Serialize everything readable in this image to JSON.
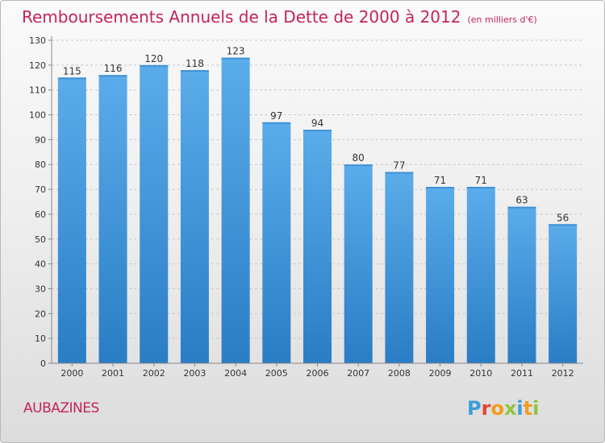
{
  "chart_data": {
    "type": "bar",
    "title": "Remboursements Annuels de la Dette de 2000 à 2012",
    "unit": "(en milliers d'€)",
    "categories": [
      "2000",
      "2001",
      "2002",
      "2003",
      "2004",
      "2005",
      "2006",
      "2007",
      "2008",
      "2009",
      "2010",
      "2011",
      "2012"
    ],
    "values": [
      115,
      116,
      120,
      118,
      123,
      97,
      94,
      80,
      77,
      71,
      71,
      63,
      56
    ],
    "ylim": [
      0,
      130
    ],
    "yticks": [
      0,
      10,
      20,
      30,
      40,
      50,
      60,
      70,
      80,
      90,
      100,
      110,
      120,
      130
    ],
    "grid": true,
    "bar_color_top": "#5aacea",
    "bar_color_bottom": "#2a7dc4"
  },
  "town": "AUBAZINES",
  "logo": "Proxiti",
  "colors": {
    "title": "#c4245c",
    "logo_letters": [
      "#3a9fd8",
      "#e8452c",
      "#f29b1c",
      "#8dc63f",
      "#3a9fd8",
      "#f29b1c",
      "#8dc63f"
    ]
  }
}
